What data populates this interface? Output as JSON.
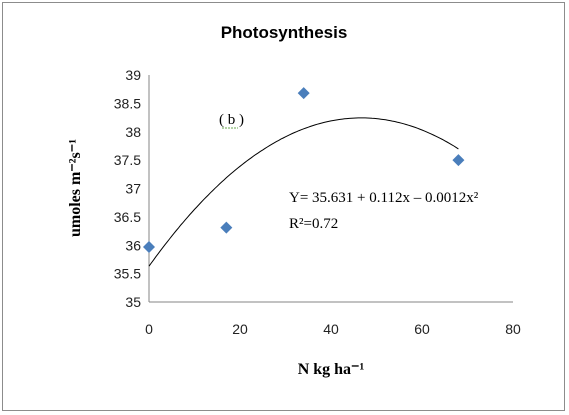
{
  "chart_data": {
    "type": "scatter",
    "title": "Photosynthesis",
    "xlabel": "N kg ha⁻¹",
    "ylabel": "umoles m⁻²s⁻¹",
    "xlim": [
      0,
      80
    ],
    "ylim": [
      35,
      39
    ],
    "xticks": [
      0,
      20,
      40,
      60,
      80
    ],
    "yticks": [
      35,
      35.5,
      36,
      36.5,
      37,
      37.5,
      38,
      38.5,
      39
    ],
    "xtick_labels": [
      "0",
      "20",
      "40",
      "60",
      "80"
    ],
    "ytick_labels": [
      "35",
      "35.5",
      "36",
      "36.5",
      "37",
      "37.5",
      "38",
      "38.5",
      "39"
    ],
    "points": [
      {
        "x": 0,
        "y": 35.97
      },
      {
        "x": 17,
        "y": 36.31
      },
      {
        "x": 34,
        "y": 38.68
      },
      {
        "x": 68,
        "y": 37.5
      }
    ],
    "trendline": {
      "type": "polynomial",
      "coefficients": [
        35.631,
        0.112,
        -0.0012
      ],
      "x_range": [
        0,
        68
      ],
      "equation_label": "Y= 35.631 + 0.112x – 0.0012x²",
      "r2_label": "R²=0.72"
    },
    "panel_label": "( b )",
    "grid": false,
    "legend": "none",
    "marker_color": "#4a7ebb",
    "line_color": "#000000"
  }
}
